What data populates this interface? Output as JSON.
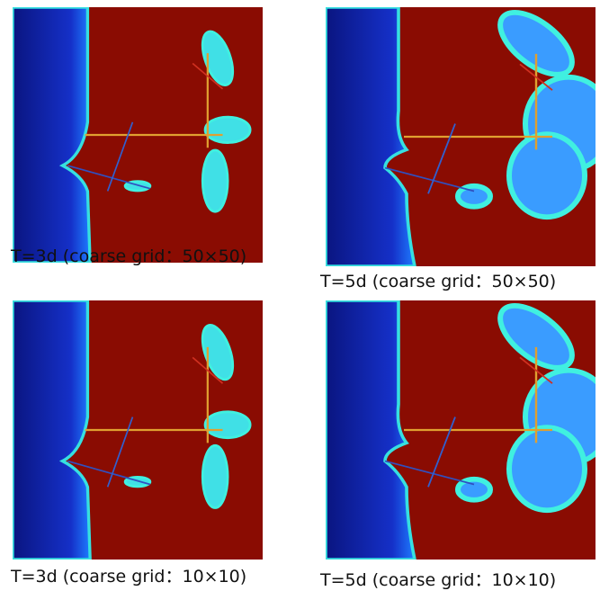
{
  "panels": [
    {
      "caption": "T=3d (coarse grid：50×50)"
    },
    {
      "caption": "T=5d (coarse grid：50×50)"
    },
    {
      "caption": "T=3d (coarse grid：10×10)"
    },
    {
      "caption": "T=5d (coarse grid：10×10)"
    }
  ]
}
